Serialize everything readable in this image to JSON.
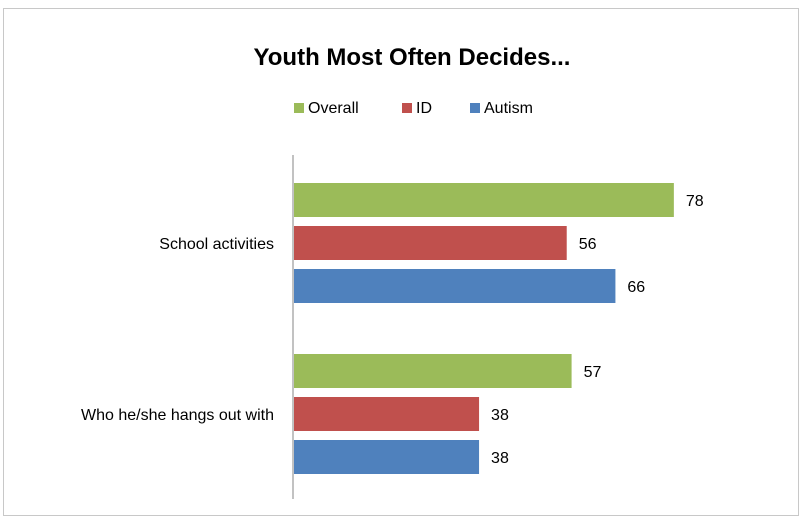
{
  "chart_data": {
    "type": "bar",
    "orientation": "horizontal",
    "title": "Youth Most Often Decides...",
    "categories": [
      "School activities",
      "Who he/she hangs out with"
    ],
    "series": [
      {
        "name": "Overall",
        "color": "#9bbb59",
        "values": [
          78,
          57
        ]
      },
      {
        "name": "ID",
        "color": "#c0504d",
        "values": [
          56,
          38
        ]
      },
      {
        "name": "Autism",
        "color": "#4f81bd",
        "values": [
          66,
          38
        ]
      }
    ],
    "xlim": [
      0,
      100
    ],
    "legend_position": "top",
    "grid": false,
    "data_labels": true
  }
}
